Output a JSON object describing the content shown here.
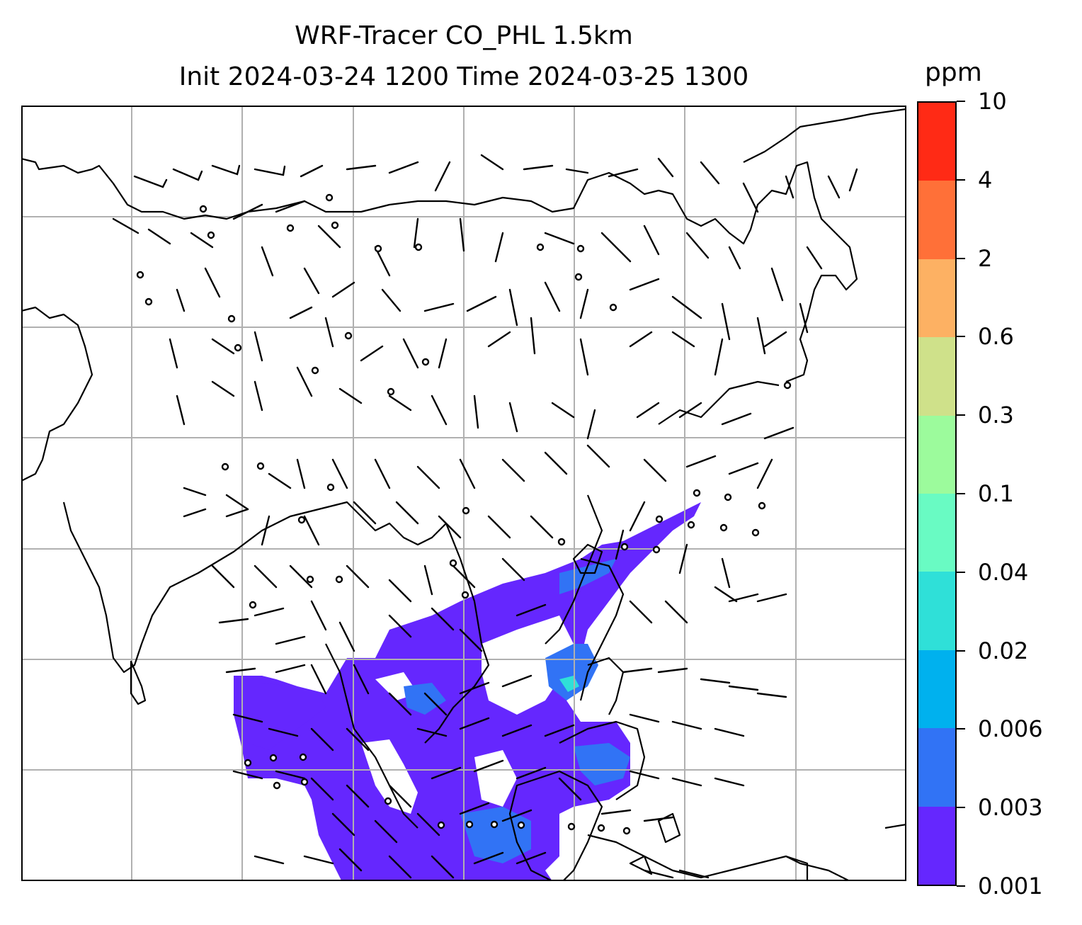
{
  "title": {
    "line1": "WRF-Tracer CO_PHL 1.5km",
    "line2": "Init 2024-03-24 1200 Time 2024-03-25 1300"
  },
  "colorbar": {
    "unit_label": "ppm",
    "ticks": [
      "10",
      "4",
      "2",
      "0.6",
      "0.3",
      "0.1",
      "0.04",
      "0.02",
      "0.006",
      "0.003",
      "0.001"
    ],
    "colors_top_to_bottom": [
      "#ff2a15",
      "#ff7038",
      "#fdb163",
      "#cfe18a",
      "#9cfb9c",
      "#69fbc3",
      "#2fe0d8",
      "#00b1ee",
      "#3173f5",
      "#6527fe"
    ]
  },
  "map": {
    "gridlines": true,
    "coastlines": true,
    "wind_barbs": true,
    "concentration_fill_colors": [
      "#6527fe",
      "#3173f5",
      "#2fe0d8"
    ]
  }
}
